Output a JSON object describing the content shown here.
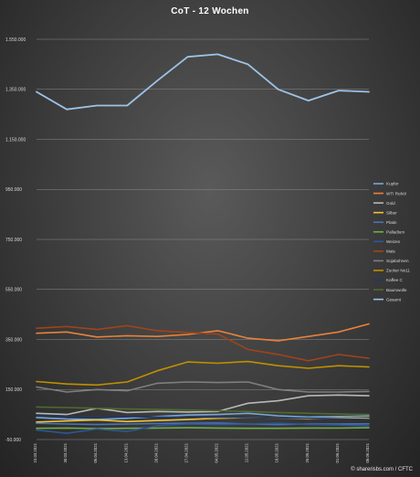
{
  "chart_data": {
    "type": "line",
    "title": "CoT - 12 Wochen",
    "xlabel": "",
    "ylabel": "",
    "ylim": [
      -50000,
      1550000
    ],
    "y_ticks": [
      "1.550.000",
      "1.350.000",
      "1.150.000",
      "950.000",
      "750.000",
      "550.000",
      "350.000",
      "150.000",
      "-50.000"
    ],
    "y_tick_values": [
      1550000,
      1350000,
      1150000,
      950000,
      750000,
      550000,
      350000,
      150000,
      -50000
    ],
    "categories": [
      "23.03.2021",
      "30.03.2021",
      "06.04.2021",
      "13.04.2021",
      "20.04.2021",
      "27.04.2021",
      "04.05.2021",
      "11.05.2021",
      "18.05.2021",
      "25.05.2021",
      "01.06.2021",
      "08.06.2021"
    ],
    "grid": true,
    "legend_position": "right",
    "series": [
      {
        "name": "Kupfer",
        "color": "#7aa6d8",
        "values": [
          38000,
          32000,
          30000,
          35000,
          42000,
          48000,
          50000,
          55000,
          45000,
          40000,
          42000,
          44000
        ]
      },
      {
        "name": "WTI Rohöl",
        "color": "#e8823a",
        "values": [
          375000,
          380000,
          360000,
          365000,
          362000,
          370000,
          385000,
          355000,
          345000,
          362000,
          380000,
          412000
        ]
      },
      {
        "name": "Gold",
        "color": "#b8b8b8",
        "values": [
          55000,
          50000,
          75000,
          58000,
          62000,
          60000,
          62000,
          95000,
          105000,
          125000,
          128000,
          125000
        ]
      },
      {
        "name": "Silber",
        "color": "#f2c230",
        "values": [
          20000,
          24000,
          28000,
          22000,
          26000,
          30000,
          35000,
          38000,
          36000,
          33000,
          36000,
          34000
        ]
      },
      {
        "name": "Platin",
        "color": "#4a72b8",
        "values": [
          15000,
          12000,
          10000,
          12000,
          14000,
          15000,
          16000,
          12000,
          10000,
          12000,
          12000,
          13000
        ]
      },
      {
        "name": "Palladium",
        "color": "#70ad47",
        "values": [
          -5000,
          -4000,
          -6000,
          -5000,
          -4000,
          -3000,
          -4000,
          -5000,
          -5000,
          -4000,
          -4000,
          -3000
        ]
      },
      {
        "name": "Weizen",
        "color": "#2f5597",
        "values": [
          -12000,
          -25000,
          -8000,
          -18000,
          5000,
          12000,
          10000,
          12000,
          15000,
          10000,
          8000,
          5000
        ]
      },
      {
        "name": "Mais",
        "color": "#a0431a",
        "values": [
          395000,
          402000,
          390000,
          405000,
          385000,
          378000,
          372000,
          310000,
          290000,
          265000,
          290000,
          275000
        ]
      },
      {
        "name": "Sojabohnen",
        "color": "#7f7f7f",
        "values": [
          160000,
          140000,
          150000,
          145000,
          175000,
          180000,
          178000,
          180000,
          150000,
          140000,
          140000,
          142000
        ]
      },
      {
        "name": "Zucker No11",
        "color": "#bf9000",
        "values": [
          182000,
          172000,
          168000,
          180000,
          225000,
          260000,
          255000,
          262000,
          245000,
          235000,
          245000,
          240000
        ]
      },
      {
        "name": "Kaffee C",
        "color": "#203864",
        "values": [
          45000,
          42000,
          40000,
          42000,
          40000,
          38000,
          40000,
          38000,
          36000,
          35000,
          33000,
          30000
        ]
      },
      {
        "name": "Baumwolle",
        "color": "#4e6b2e",
        "values": [
          80000,
          78000,
          75000,
          72000,
          70000,
          68000,
          65000,
          62000,
          58000,
          55000,
          52000,
          50000
        ]
      },
      {
        "name": "Gesamt",
        "color": "#9dc3e6",
        "values": [
          1340000,
          1270000,
          1285000,
          1285000,
          1385000,
          1480000,
          1490000,
          1450000,
          1350000,
          1305000,
          1345000,
          1340000
        ]
      }
    ],
    "source": "© sharerisbs.com / CFTC"
  }
}
